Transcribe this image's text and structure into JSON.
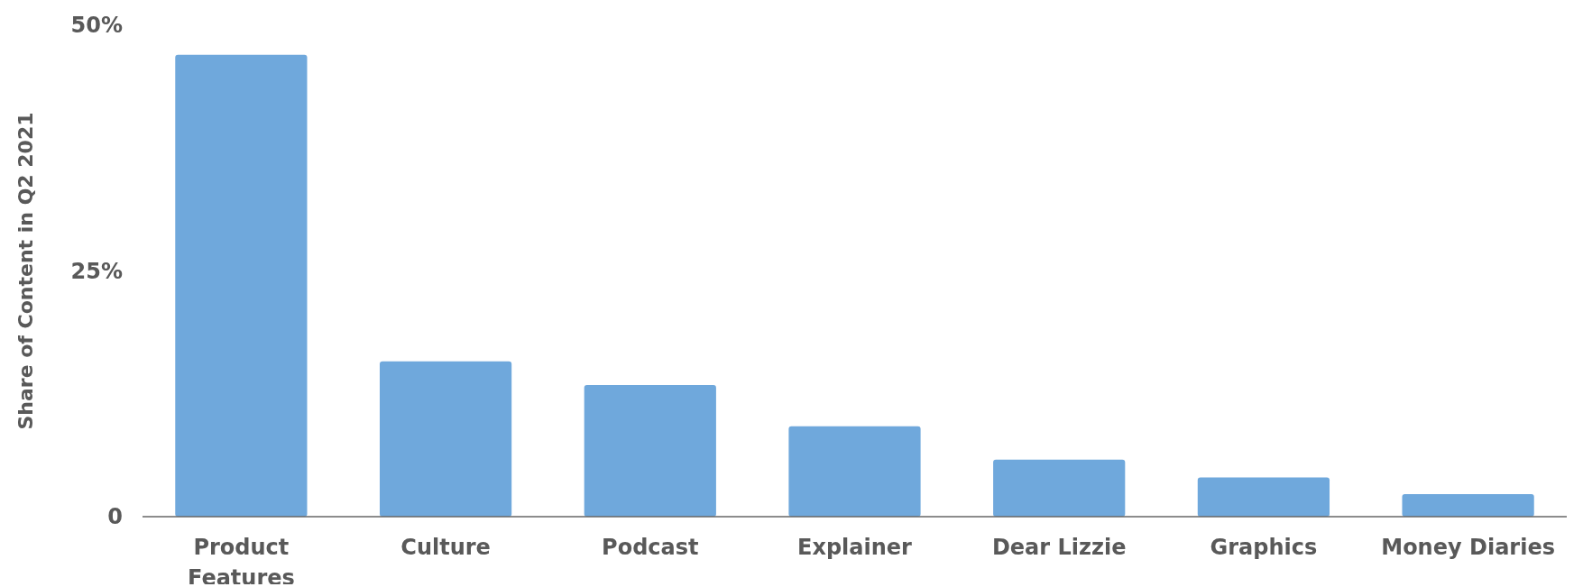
{
  "chart_data": {
    "type": "bar",
    "ylabel": "Share of Content in Q2 2021",
    "categories": [
      "Product Features",
      "Culture",
      "Podcast",
      "Explainer",
      "Dear Lizzie",
      "Graphics",
      "Money Diaries"
    ],
    "values": [
      47,
      15.8,
      13.4,
      9.2,
      5.8,
      4,
      2.3
    ],
    "color": "#6fa8dc",
    "ylim": [
      0,
      50
    ],
    "yticks": [
      {
        "value": 0,
        "label": "0"
      },
      {
        "value": 25,
        "label": "25%"
      },
      {
        "value": 50,
        "label": "50%"
      }
    ],
    "grid": false
  }
}
